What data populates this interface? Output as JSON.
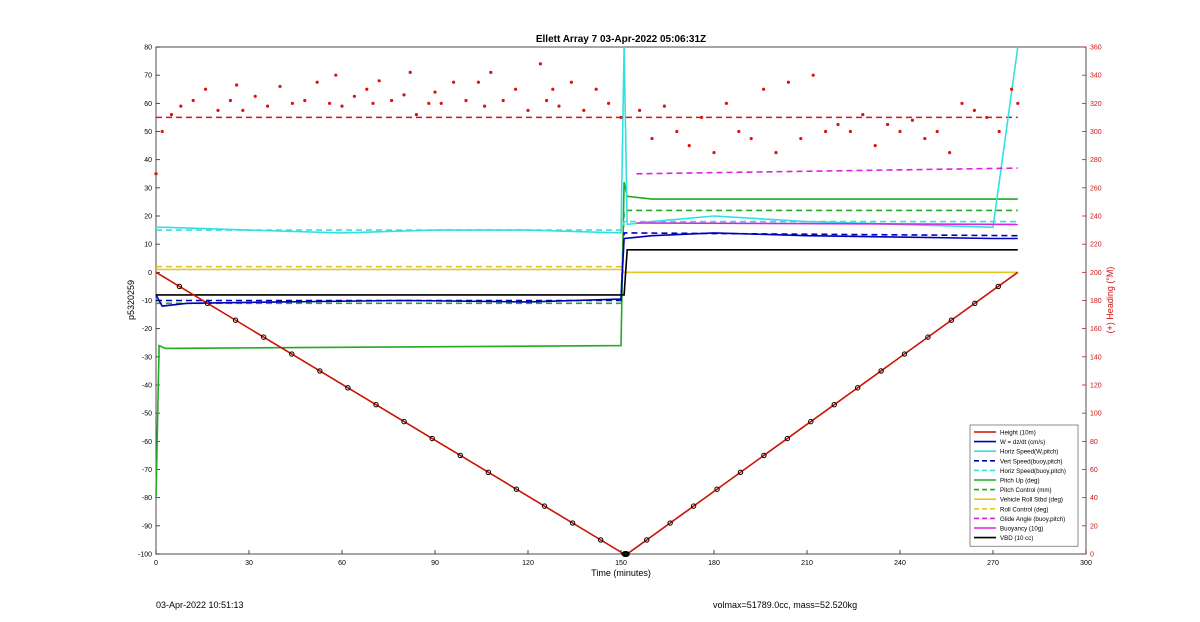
{
  "chart_data": {
    "type": "line",
    "title": "Ellett Array 7 03-Apr-2022 05:06:31Z",
    "xlabel": "Time (minutes)",
    "ylabel": "p5320259",
    "y2label": "(+) Heading (°M)",
    "xlim": [
      0,
      300
    ],
    "ylim": [
      -100,
      80
    ],
    "y2lim": [
      0,
      360
    ],
    "xticks": [
      0,
      30,
      60,
      90,
      120,
      150,
      180,
      210,
      240,
      270,
      300
    ],
    "yticks": [
      -100,
      -90,
      -80,
      -70,
      -60,
      -50,
      -40,
      -30,
      -20,
      -10,
      0,
      10,
      20,
      30,
      40,
      50,
      60,
      70,
      80
    ],
    "y2ticks": [
      0,
      20,
      40,
      60,
      80,
      100,
      120,
      140,
      160,
      180,
      200,
      220,
      240,
      260,
      280,
      300,
      320,
      340,
      360
    ],
    "grid": false,
    "legend_position": "bottom-right",
    "colors": {
      "height": "#cc1100",
      "w": "#0000bb",
      "horiz": "#33e0e0",
      "pitch": "#22aa22",
      "roll": "#e0c820",
      "glide": "#dd22dd",
      "buoyancy": "#dd22dd",
      "vbd": "#000000",
      "heading": "#dd1111"
    },
    "series": [
      {
        "name": "Height (10m)",
        "key": "height",
        "style": "solid",
        "x": [
          0,
          151,
          152,
          278
        ],
        "values": [
          0,
          -100,
          -100,
          0
        ]
      },
      {
        "name": "W = dz/dt (cm/s)",
        "key": "w",
        "style": "solid",
        "x": [
          0,
          2,
          10,
          40,
          80,
          120,
          150,
          151,
          160,
          180,
          210,
          240,
          270,
          278
        ],
        "values": [
          -8,
          -12,
          -11,
          -10.5,
          -10,
          -10.5,
          -9.5,
          12,
          13,
          14,
          13,
          12.5,
          12,
          12
        ]
      },
      {
        "name": "Horiz Speed(W,pitch)",
        "key": "horiz",
        "style": "solid",
        "x": [
          0,
          3,
          30,
          60,
          90,
          120,
          150,
          151,
          152,
          160,
          180,
          210,
          240,
          270,
          278
        ],
        "values": [
          16,
          16,
          15,
          14,
          15,
          15,
          14,
          80,
          17,
          18,
          20,
          18,
          17,
          16,
          80
        ]
      },
      {
        "name": "Vert Speed(buoy,pitch)",
        "key": "w",
        "style": "dashed",
        "x": [
          0,
          150,
          151,
          278
        ],
        "values": [
          -10,
          -10,
          14,
          13
        ]
      },
      {
        "name": "Horiz Speed(buoy,pitch)",
        "key": "horiz",
        "style": "dashed",
        "x": [
          0,
          150,
          151,
          278
        ],
        "values": [
          15,
          15,
          18,
          18
        ]
      },
      {
        "name": "Pitch Up (deg)",
        "key": "pitch",
        "style": "solid",
        "x": [
          0,
          1,
          3,
          150,
          151,
          152,
          160,
          278
        ],
        "values": [
          -80,
          -26,
          -27,
          -26,
          32,
          27,
          26,
          26
        ]
      },
      {
        "name": "Pitch Control (mm)",
        "key": "pitch",
        "style": "dashed",
        "x": [
          0,
          150,
          151,
          278
        ],
        "values": [
          -11,
          -11,
          22,
          22
        ]
      },
      {
        "name": "Vehicle Roll Stbd (deg)",
        "key": "roll",
        "style": "solid",
        "x": [
          0,
          150,
          151,
          278
        ],
        "values": [
          1,
          1,
          0,
          0
        ]
      },
      {
        "name": "Roll Control (deg)",
        "key": "roll",
        "style": "dashed",
        "x": [
          0,
          150,
          151,
          278
        ],
        "values": [
          2,
          2,
          0,
          0
        ]
      },
      {
        "name": "Glide Angle (buoy,pitch)",
        "key": "glide",
        "style": "dashed",
        "x": [
          155,
          278
        ],
        "values": [
          35,
          37
        ]
      },
      {
        "name": "Buoyancy (10g)",
        "key": "buoyancy",
        "style": "solid",
        "x": [
          155,
          278
        ],
        "values": [
          17.5,
          17
        ]
      },
      {
        "name": "VBD (10 cc)",
        "key": "vbd",
        "style": "solid",
        "x": [
          0,
          150,
          151,
          152,
          278
        ],
        "values": [
          -8,
          -8,
          -8,
          8,
          8
        ]
      }
    ],
    "heading_reference": {
      "style": "dashed",
      "key": "heading",
      "value_deg": 310
    },
    "heading_scatter_key": "heading",
    "heading_points": {
      "x": [
        0,
        2,
        5,
        8,
        12,
        16,
        20,
        24,
        26,
        28,
        32,
        36,
        40,
        44,
        48,
        52,
        56,
        58,
        60,
        64,
        68,
        70,
        72,
        76,
        80,
        82,
        84,
        88,
        90,
        92,
        96,
        100,
        104,
        106,
        108,
        112,
        116,
        120,
        124,
        126,
        128,
        130,
        134,
        138,
        142,
        146,
        150,
        156,
        160,
        164,
        168,
        172,
        176,
        180,
        184,
        188,
        192,
        196,
        200,
        204,
        208,
        212,
        216,
        220,
        224,
        228,
        232,
        236,
        240,
        244,
        248,
        252,
        256,
        260,
        264,
        268,
        272,
        276,
        278
      ],
      "values": [
        270,
        300,
        312,
        318,
        322,
        330,
        315,
        322,
        333,
        315,
        325,
        318,
        332,
        320,
        322,
        335,
        320,
        340,
        318,
        325,
        330,
        320,
        336,
        322,
        326,
        342,
        312,
        320,
        328,
        320,
        335,
        322,
        335,
        318,
        342,
        322,
        330,
        315,
        348,
        322,
        330,
        318,
        335,
        315,
        330,
        320,
        310,
        315,
        295,
        318,
        300,
        290,
        310,
        285,
        320,
        300,
        295,
        330,
        285,
        335,
        295,
        340,
        300,
        305,
        300,
        312,
        290,
        305,
        300,
        308,
        295,
        300,
        285,
        320,
        315,
        310,
        300,
        330,
        320
      ]
    }
  },
  "footer": {
    "timestamp": "03-Apr-2022 10:51:13",
    "volmax": "volmax=51789.0cc, mass=52.520kg"
  }
}
